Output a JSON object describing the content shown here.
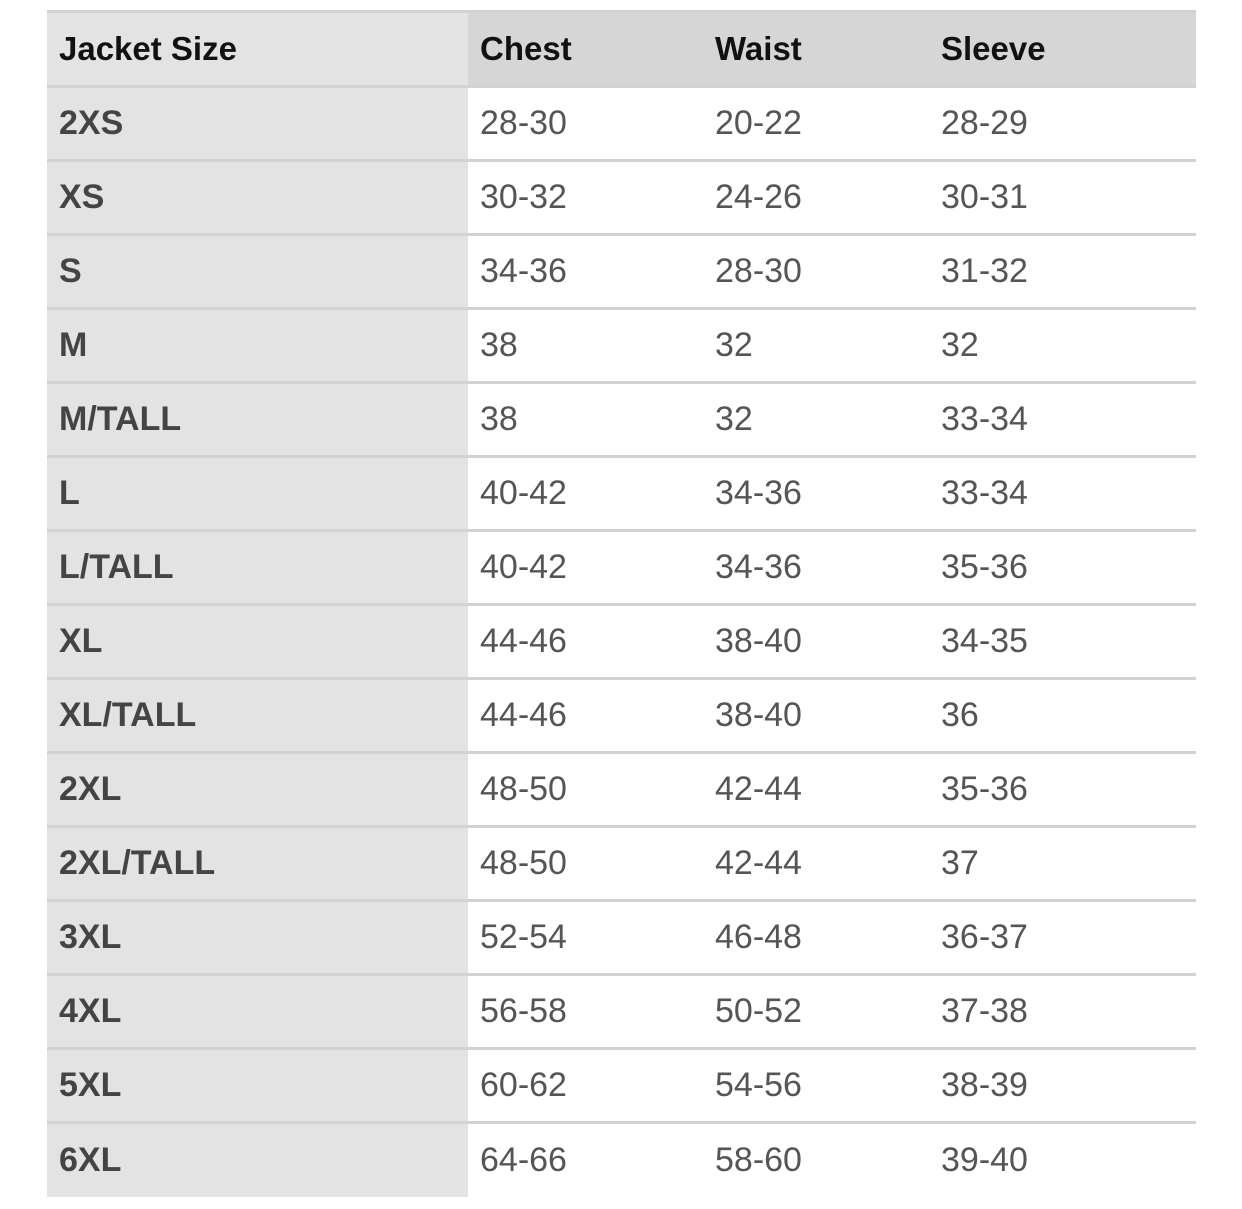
{
  "table": {
    "headers": [
      "Jacket Size",
      "Chest",
      "Waist",
      "Sleeve"
    ],
    "rows": [
      [
        "2XS",
        "28-30",
        "20-22",
        "28-29"
      ],
      [
        "XS",
        "30-32",
        "24-26",
        "30-31"
      ],
      [
        "S",
        "34-36",
        "28-30",
        "31-32"
      ],
      [
        "M",
        "38",
        "32",
        "32"
      ],
      [
        "M/TALL",
        "38",
        "32",
        "33-34"
      ],
      [
        "L",
        "40-42",
        "34-36",
        "33-34"
      ],
      [
        "L/TALL",
        "40-42",
        "34-36",
        "35-36"
      ],
      [
        "XL",
        "44-46",
        "38-40",
        "34-35"
      ],
      [
        "XL/TALL",
        "44-46",
        "38-40",
        "36"
      ],
      [
        "2XL",
        "48-50",
        "42-44",
        "35-36"
      ],
      [
        "2XL/TALL",
        "48-50",
        "42-44",
        "37"
      ],
      [
        "3XL",
        "52-54",
        "46-48",
        "36-37"
      ],
      [
        "4XL",
        "56-58",
        "50-52",
        "37-38"
      ],
      [
        "5XL",
        "60-62",
        "54-56",
        "38-39"
      ],
      [
        "6XL",
        "64-66",
        "58-60",
        "39-40"
      ]
    ]
  }
}
